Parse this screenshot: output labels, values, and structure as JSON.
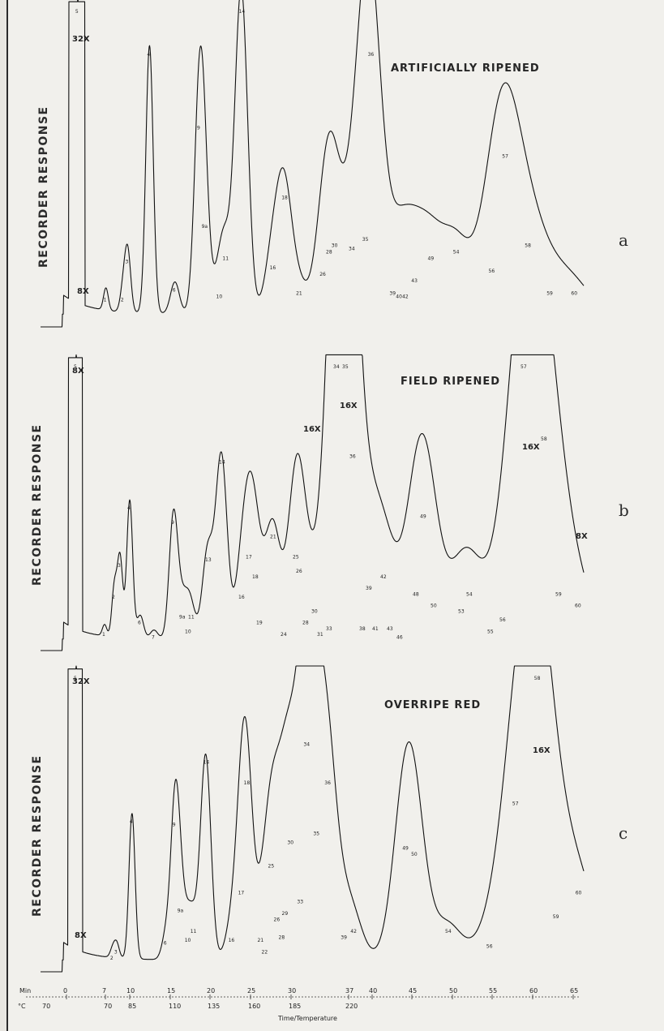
{
  "chart_data": [
    {
      "type": "line",
      "title": "ARTIFICIALLY RIPENED",
      "panel_letter": "a",
      "ylabel": "RECORDER RESPONSE",
      "annotations": [
        "32X",
        "8X"
      ],
      "peaks": [
        {
          "label": "5",
          "x": 1.6,
          "y": 1.0
        },
        {
          "label": "1",
          "x": 4.7,
          "y": 0.07
        },
        {
          "label": "2",
          "x": 6.6,
          "y": 0.07
        },
        {
          "label": "3",
          "x": 7.1,
          "y": 0.19
        },
        {
          "label": "4",
          "x": 9.5,
          "y": 0.84
        },
        {
          "label": "6",
          "x": 12.3,
          "y": 0.1
        },
        {
          "label": "9",
          "x": 15,
          "y": 0.61
        },
        {
          "label": "9a",
          "x": 15.5,
          "y": 0.3
        },
        {
          "label": "10",
          "x": 17.1,
          "y": 0.08
        },
        {
          "label": "11",
          "x": 17.8,
          "y": 0.2
        },
        {
          "label": "14",
          "x": 19.6,
          "y": 1.02
        },
        {
          "label": "16",
          "x": 23,
          "y": 0.17
        },
        {
          "label": "18",
          "x": 24.3,
          "y": 0.39
        },
        {
          "label": "21",
          "x": 25.9,
          "y": 0.09
        },
        {
          "label": "26",
          "x": 28.5,
          "y": 0.15
        },
        {
          "label": "28",
          "x": 29.2,
          "y": 0.22
        },
        {
          "label": "30",
          "x": 29.8,
          "y": 0.24
        },
        {
          "label": "34",
          "x": 31.7,
          "y": 0.23
        },
        {
          "label": "35",
          "x": 33.2,
          "y": 0.26
        },
        {
          "label": "36",
          "x": 33.8,
          "y": 0.84
        },
        {
          "label": "39",
          "x": 36.2,
          "y": 0.09
        },
        {
          "label": "40",
          "x": 36.9,
          "y": 0.08
        },
        {
          "label": "42",
          "x": 37.6,
          "y": 0.08
        },
        {
          "label": "43",
          "x": 38.6,
          "y": 0.13
        },
        {
          "label": "49",
          "x": 40.4,
          "y": 0.2
        },
        {
          "label": "54",
          "x": 43.2,
          "y": 0.22
        },
        {
          "label": "56",
          "x": 47.1,
          "y": 0.16
        },
        {
          "label": "57",
          "x": 48.6,
          "y": 0.52
        },
        {
          "label": "58",
          "x": 51.1,
          "y": 0.24
        },
        {
          "label": "59",
          "x": 53.5,
          "y": 0.09
        },
        {
          "label": "60",
          "x": 56.2,
          "y": 0.09
        }
      ]
    },
    {
      "type": "line",
      "title": "FIELD RIPENED",
      "panel_letter": "b",
      "ylabel": "RECORDER RESPONSE",
      "annotations": [
        "8X",
        "16X",
        "16X",
        "16X",
        "8X"
      ],
      "peaks": [
        {
          "label": "5",
          "x": 1.6,
          "y": 1.0
        },
        {
          "label": "1",
          "x": 5.1,
          "y": 0.04
        },
        {
          "label": "2",
          "x": 6.3,
          "y": 0.17
        },
        {
          "label": "3",
          "x": 7,
          "y": 0.28
        },
        {
          "label": "4",
          "x": 8.2,
          "y": 0.48
        },
        {
          "label": "6",
          "x": 9.5,
          "y": 0.08
        },
        {
          "label": "7",
          "x": 11.2,
          "y": 0.03
        },
        {
          "label": "9",
          "x": 13.6,
          "y": 0.43
        },
        {
          "label": "9a",
          "x": 14.6,
          "y": 0.1
        },
        {
          "label": "10",
          "x": 15.3,
          "y": 0.05
        },
        {
          "label": "11",
          "x": 15.7,
          "y": 0.1
        },
        {
          "label": "13",
          "x": 17.8,
          "y": 0.3
        },
        {
          "label": "14",
          "x": 19.5,
          "y": 0.64
        },
        {
          "label": "16",
          "x": 21.9,
          "y": 0.17
        },
        {
          "label": "17",
          "x": 22.8,
          "y": 0.31
        },
        {
          "label": "18",
          "x": 23.6,
          "y": 0.24
        },
        {
          "label": "19",
          "x": 24.1,
          "y": 0.08
        },
        {
          "label": "21",
          "x": 25.8,
          "y": 0.38
        },
        {
          "label": "24",
          "x": 27.1,
          "y": 0.04
        },
        {
          "label": "25",
          "x": 28.6,
          "y": 0.31
        },
        {
          "label": "26",
          "x": 29,
          "y": 0.26
        },
        {
          "label": "28",
          "x": 29.8,
          "y": 0.08
        },
        {
          "label": "30",
          "x": 30.9,
          "y": 0.12
        },
        {
          "label": "31",
          "x": 31.6,
          "y": 0.04
        },
        {
          "label": "33",
          "x": 32.7,
          "y": 0.06
        },
        {
          "label": "34",
          "x": 33.6,
          "y": 1.0
        },
        {
          "label": "35",
          "x": 34.7,
          "y": 1.0
        },
        {
          "label": "36",
          "x": 35.6,
          "y": 0.66
        },
        {
          "label": "38",
          "x": 36.8,
          "y": 0.06
        },
        {
          "label": "39",
          "x": 37.6,
          "y": 0.2
        },
        {
          "label": "41",
          "x": 38.4,
          "y": 0.06
        },
        {
          "label": "42",
          "x": 39.4,
          "y": 0.24
        },
        {
          "label": "43",
          "x": 40.2,
          "y": 0.06
        },
        {
          "label": "46",
          "x": 41.4,
          "y": 0.03
        },
        {
          "label": "48",
          "x": 43.4,
          "y": 0.18
        },
        {
          "label": "49",
          "x": 44.3,
          "y": 0.45
        },
        {
          "label": "50",
          "x": 45.6,
          "y": 0.14
        },
        {
          "label": "53",
          "x": 49,
          "y": 0.12
        },
        {
          "label": "54",
          "x": 50,
          "y": 0.18
        },
        {
          "label": "55",
          "x": 52.6,
          "y": 0.05
        },
        {
          "label": "56",
          "x": 54.1,
          "y": 0.09
        },
        {
          "label": "57",
          "x": 56.7,
          "y": 1.0
        },
        {
          "label": "58",
          "x": 59.2,
          "y": 0.72
        },
        {
          "label": "59",
          "x": 61,
          "y": 0.18
        },
        {
          "label": "60",
          "x": 63.4,
          "y": 0.14
        }
      ]
    },
    {
      "type": "line",
      "title": "OVERRIPE RED",
      "panel_letter": "c",
      "ylabel": "RECORDER RESPONSE",
      "annotations": [
        "32X",
        "8X",
        "16X"
      ],
      "xlabel": "Time/Temperature",
      "x_axis": {
        "unit_min": "Min",
        "unit_temp": "°C",
        "time_ticks": [
          "0",
          "7",
          "10",
          "15",
          "20",
          "25",
          "30",
          "37",
          "40",
          "45",
          "50",
          "55",
          "60",
          "65"
        ],
        "temp_ticks": [
          "70",
          "70",
          "85",
          "110",
          "135",
          "160",
          "185",
          "220"
        ]
      },
      "peaks": [
        {
          "label": "5",
          "x": 1.6,
          "y": 1.0
        },
        {
          "label": "2",
          "x": 6.1,
          "y": 0.03
        },
        {
          "label": "3",
          "x": 6.6,
          "y": 0.05
        },
        {
          "label": "4",
          "x": 8.5,
          "y": 0.49
        },
        {
          "label": "6",
          "x": 12.7,
          "y": 0.08
        },
        {
          "label": "9",
          "x": 13.8,
          "y": 0.48
        },
        {
          "label": "9a",
          "x": 14.4,
          "y": 0.19
        },
        {
          "label": "10",
          "x": 15.3,
          "y": 0.09
        },
        {
          "label": "11",
          "x": 16,
          "y": 0.12
        },
        {
          "label": "14",
          "x": 17.6,
          "y": 0.69
        },
        {
          "label": "16",
          "x": 20.7,
          "y": 0.09
        },
        {
          "label": "17",
          "x": 21.9,
          "y": 0.25
        },
        {
          "label": "18",
          "x": 22.6,
          "y": 0.62
        },
        {
          "label": "21",
          "x": 24.3,
          "y": 0.09
        },
        {
          "label": "22",
          "x": 24.8,
          "y": 0.05
        },
        {
          "label": "25",
          "x": 25.6,
          "y": 0.34
        },
        {
          "label": "26",
          "x": 26.3,
          "y": 0.16
        },
        {
          "label": "28",
          "x": 26.9,
          "y": 0.1
        },
        {
          "label": "29",
          "x": 27.3,
          "y": 0.18
        },
        {
          "label": "30",
          "x": 28,
          "y": 0.42
        },
        {
          "label": "33",
          "x": 29.2,
          "y": 0.22
        },
        {
          "label": "34",
          "x": 30,
          "y": 0.75
        },
        {
          "label": "35",
          "x": 31.2,
          "y": 0.45
        },
        {
          "label": "36",
          "x": 32.6,
          "y": 0.62
        },
        {
          "label": "39",
          "x": 34.6,
          "y": 0.1
        },
        {
          "label": "42",
          "x": 35.8,
          "y": 0.12
        },
        {
          "label": "49",
          "x": 42.2,
          "y": 0.4
        },
        {
          "label": "50",
          "x": 43.3,
          "y": 0.38
        },
        {
          "label": "54",
          "x": 47.5,
          "y": 0.12
        },
        {
          "label": "56",
          "x": 52.6,
          "y": 0.07
        },
        {
          "label": "57",
          "x": 55.8,
          "y": 0.55
        },
        {
          "label": "58",
          "x": 58.5,
          "y": 1.0
        },
        {
          "label": "59",
          "x": 60.8,
          "y": 0.17
        },
        {
          "label": "60",
          "x": 63.6,
          "y": 0.25
        }
      ]
    }
  ]
}
